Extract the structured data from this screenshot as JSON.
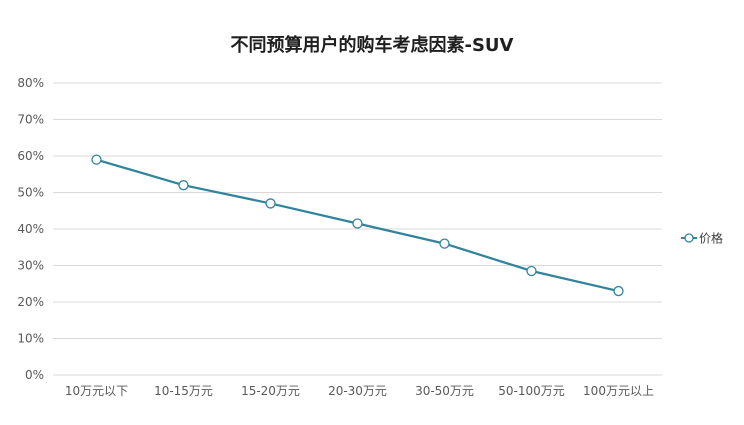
{
  "chart_data": {
    "type": "line",
    "title": "不同预算用户的购车考虑因素-SUV",
    "categories": [
      "10万元以下",
      "10-15万元",
      "15-20万元",
      "20-30万元",
      "30-50万元",
      "50-100万元",
      "100万元以上"
    ],
    "series": [
      {
        "name": "价格",
        "values": [
          59,
          52,
          47,
          41.5,
          36,
          28.5,
          23
        ],
        "color": "#31849b"
      }
    ],
    "ylim": [
      0,
      80
    ],
    "yticks": [
      "0%",
      "10%",
      "20%",
      "30%",
      "40%",
      "50%",
      "60%",
      "70%",
      "80%"
    ],
    "grid": true,
    "legend_position": "right",
    "marker": "circle"
  }
}
